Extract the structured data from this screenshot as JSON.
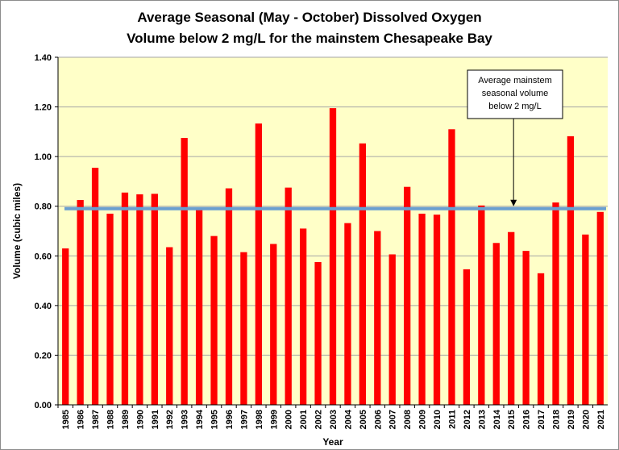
{
  "chart_data": {
    "type": "bar",
    "title_lines": [
      "Average Seasonal (May - October) Dissolved Oxygen",
      "Volume below 2 mg/L for the mainstem Chesapeake Bay"
    ],
    "xlabel": "Year",
    "ylabel": "Volume  (cubic miles)",
    "ylim": [
      0,
      1.4
    ],
    "yticks": [
      "0.00",
      "0.20",
      "0.40",
      "0.60",
      "0.80",
      "1.00",
      "1.20",
      "1.40"
    ],
    "grid": true,
    "categories": [
      "1985",
      "1986",
      "1987",
      "1988",
      "1989",
      "1990",
      "1991",
      "1992",
      "1993",
      "1994",
      "1995",
      "1996",
      "1997",
      "1998",
      "1999",
      "2000",
      "2001",
      "2002",
      "2003",
      "2004",
      "2005",
      "2006",
      "2007",
      "2008",
      "2009",
      "2010",
      "2011",
      "2012",
      "2013",
      "2014",
      "2015",
      "2016",
      "2017",
      "2018",
      "2019",
      "2020",
      "2021"
    ],
    "values": [
      0.63,
      0.825,
      0.955,
      0.77,
      0.855,
      0.848,
      0.85,
      0.635,
      1.075,
      0.788,
      0.68,
      0.872,
      0.615,
      1.133,
      0.648,
      0.875,
      0.71,
      0.575,
      1.195,
      0.732,
      1.053,
      0.7,
      0.606,
      0.878,
      0.77,
      0.766,
      1.11,
      0.546,
      0.803,
      0.652,
      0.696,
      0.62,
      0.53,
      0.815,
      1.082,
      0.686,
      0.777
    ],
    "average": {
      "value": 0.79,
      "color": "#6a9fd0"
    },
    "annotation": {
      "lines": [
        "Average mainstem",
        "seasonal volume",
        "below 2 mg/L"
      ],
      "points_to_category": "2015"
    },
    "colors": {
      "bar": "#ff0000",
      "plot_background": "#ffffc8",
      "grid": "#a6a6a6"
    }
  }
}
